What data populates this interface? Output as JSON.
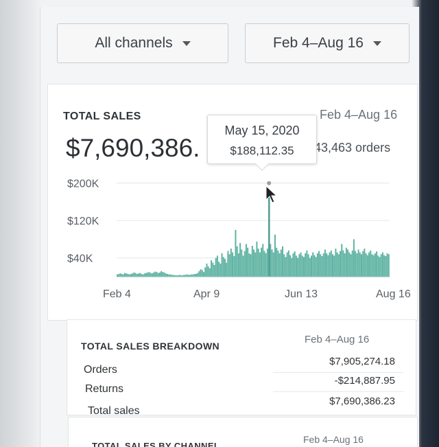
{
  "filters": {
    "channel_label": "All channels",
    "date_label": "Feb 4–Aug 16"
  },
  "sales_card": {
    "title": "TOTAL SALES",
    "date_range": "Feb 4–Aug 16",
    "total_value": "$7,690,386.",
    "orders": "43,463 orders",
    "tooltip": {
      "date": "May 15, 2020",
      "value": "$188,112.35"
    }
  },
  "chart_data": {
    "type": "bar",
    "y_ticks": [
      "$200K",
      "$120K",
      "$40K"
    ],
    "y_tick_values": [
      200000,
      120000,
      40000
    ],
    "x_ticks": [
      "Feb 4",
      "Apr 9",
      "Jun 13",
      "Aug 16"
    ],
    "ylim": [
      0,
      220000
    ],
    "bar_color": "#5fb3a3",
    "highlight_color": "#4a9a8b",
    "highlight_index": 100,
    "values": [
      5000,
      6000,
      7000,
      6000,
      5000,
      8000,
      7000,
      6000,
      5000,
      6000,
      7000,
      9000,
      8000,
      6000,
      7000,
      8000,
      6000,
      5000,
      7000,
      8000,
      9000,
      10000,
      8000,
      7000,
      9000,
      11000,
      10000,
      8000,
      9000,
      12000,
      10000,
      9000,
      7000,
      6000,
      5000,
      5000,
      4000,
      4000,
      3000,
      3000,
      3000,
      4000,
      3000,
      3000,
      4000,
      4000,
      5000,
      4000,
      4000,
      5000,
      5000,
      6000,
      6000,
      8000,
      12000,
      16000,
      14000,
      10000,
      20000,
      28000,
      22000,
      18000,
      35000,
      30000,
      25000,
      40000,
      45000,
      32000,
      28000,
      50000,
      42000,
      38000,
      30000,
      55000,
      48000,
      60000,
      52000,
      44000,
      100000,
      65000,
      50000,
      72000,
      58000,
      45000,
      55000,
      70000,
      62000,
      50000,
      48000,
      66000,
      58000,
      52000,
      75000,
      60000,
      52000,
      62000,
      70000,
      55000,
      50000,
      60000,
      188112,
      70000,
      58000,
      52000,
      90000,
      62000,
      56000,
      50000,
      58000,
      65000,
      48000,
      42000,
      52000,
      56000,
      46000,
      40000,
      50000,
      54000,
      45000,
      40000,
      48000,
      52000,
      45000,
      42000,
      50000,
      56000,
      48000,
      40000,
      45000,
      52000,
      46000,
      42000,
      50000,
      55000,
      48000,
      44000,
      50000,
      58000,
      50000,
      46000,
      52000,
      56000,
      48000,
      45000,
      60000,
      52000,
      48000,
      55000,
      70000,
      56000,
      50000,
      62000,
      58000,
      52000,
      48000,
      56000,
      80000,
      55000,
      50000,
      58000,
      52000,
      48000,
      55000,
      60000,
      50000,
      46000,
      52000,
      56000,
      48000,
      46000,
      50000,
      54000,
      45000,
      42000,
      48000,
      52000,
      46000,
      44000,
      50000,
      48000
    ]
  },
  "breakdown_card": {
    "title": "TOTAL SALES BREAKDOWN",
    "date_range": "Feb 4–Aug 16",
    "rows": [
      {
        "label": "Orders",
        "value": "$7,905,274.18"
      },
      {
        "label": "Returns",
        "value": "-$214,887.95"
      },
      {
        "label": "Total sales",
        "value": "$7,690,386.23"
      }
    ]
  },
  "channel_card": {
    "title": "TOTAL SALES BY CHANNEL",
    "date_range": "Feb 4–Aug 16"
  }
}
